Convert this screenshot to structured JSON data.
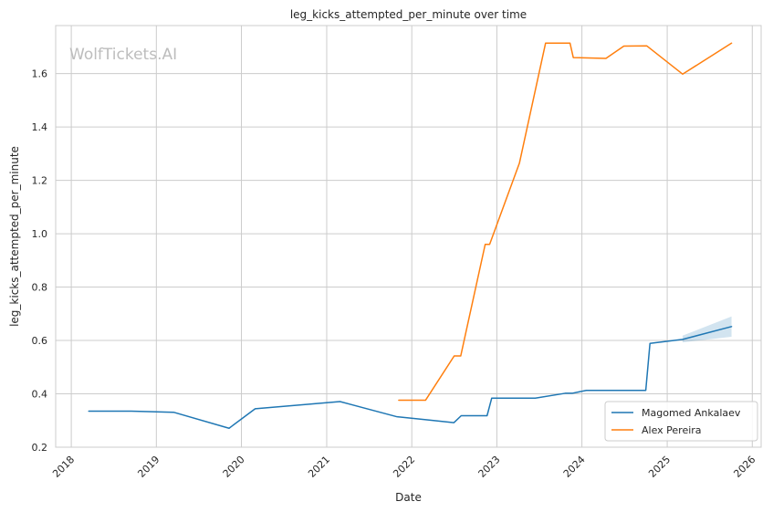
{
  "chart_data": {
    "type": "line",
    "title": "leg_kicks_attempted_per_minute over time",
    "xlabel": "Date",
    "ylabel": "leg_kicks_attempted_per_minute",
    "watermark": "WolfTickets.AI",
    "xlim": [
      "2017-10-26",
      "2026-02-08"
    ],
    "ylim": [
      0.2,
      1.78
    ],
    "x_ticks": [
      "2018",
      "2019",
      "2020",
      "2021",
      "2022",
      "2023",
      "2024",
      "2025",
      "2026"
    ],
    "y_ticks": [
      "0.2",
      "0.4",
      "0.6",
      "0.8",
      "1.0",
      "1.2",
      "1.4",
      "1.6"
    ],
    "grid": true,
    "legend_position": "lower-right",
    "series": [
      {
        "name": "Magomed Ankalaev",
        "color": "#1f77b4",
        "points": [
          [
            "2018-03-17",
            0.335
          ],
          [
            "2018-09-15",
            0.335
          ],
          [
            "2019-03-16",
            0.331
          ],
          [
            "2019-11-09",
            0.271
          ],
          [
            "2020-02-29",
            0.344
          ],
          [
            "2021-02-27",
            0.371
          ],
          [
            "2021-10-30",
            0.314
          ],
          [
            "2022-03-12",
            0.302
          ],
          [
            "2022-07-01",
            0.292
          ],
          [
            "2022-08-01",
            0.318
          ],
          [
            "2022-11-20",
            0.318
          ],
          [
            "2022-12-10",
            0.384
          ],
          [
            "2023-06-15",
            0.384
          ],
          [
            "2023-10-21",
            0.402
          ],
          [
            "2023-11-20",
            0.402
          ],
          [
            "2024-01-20",
            0.413
          ],
          [
            "2024-10-01",
            0.413
          ],
          [
            "2024-10-19",
            0.589
          ],
          [
            "2025-03-08",
            0.604
          ],
          [
            "2025-10-04",
            0.652
          ]
        ],
        "band": [
          [
            "2025-03-08",
            0.593,
            0.618
          ],
          [
            "2025-10-04",
            0.614,
            0.69
          ]
        ]
      },
      {
        "name": "Alex Pereira",
        "color": "#ff7f0e",
        "points": [
          [
            "2021-11-06",
            0.376
          ],
          [
            "2022-03-01",
            0.376
          ],
          [
            "2022-07-02",
            0.542
          ],
          [
            "2022-07-30",
            0.542
          ],
          [
            "2022-11-12",
            0.96
          ],
          [
            "2022-12-01",
            0.96
          ],
          [
            "2023-04-08",
            1.265
          ],
          [
            "2023-07-29",
            1.714
          ],
          [
            "2023-11-11",
            1.714
          ],
          [
            "2023-11-25",
            1.66
          ],
          [
            "2024-04-13",
            1.657
          ],
          [
            "2024-06-29",
            1.703
          ],
          [
            "2024-10-05",
            1.704
          ],
          [
            "2025-03-08",
            1.598
          ],
          [
            "2025-10-04",
            1.714
          ]
        ]
      }
    ]
  }
}
